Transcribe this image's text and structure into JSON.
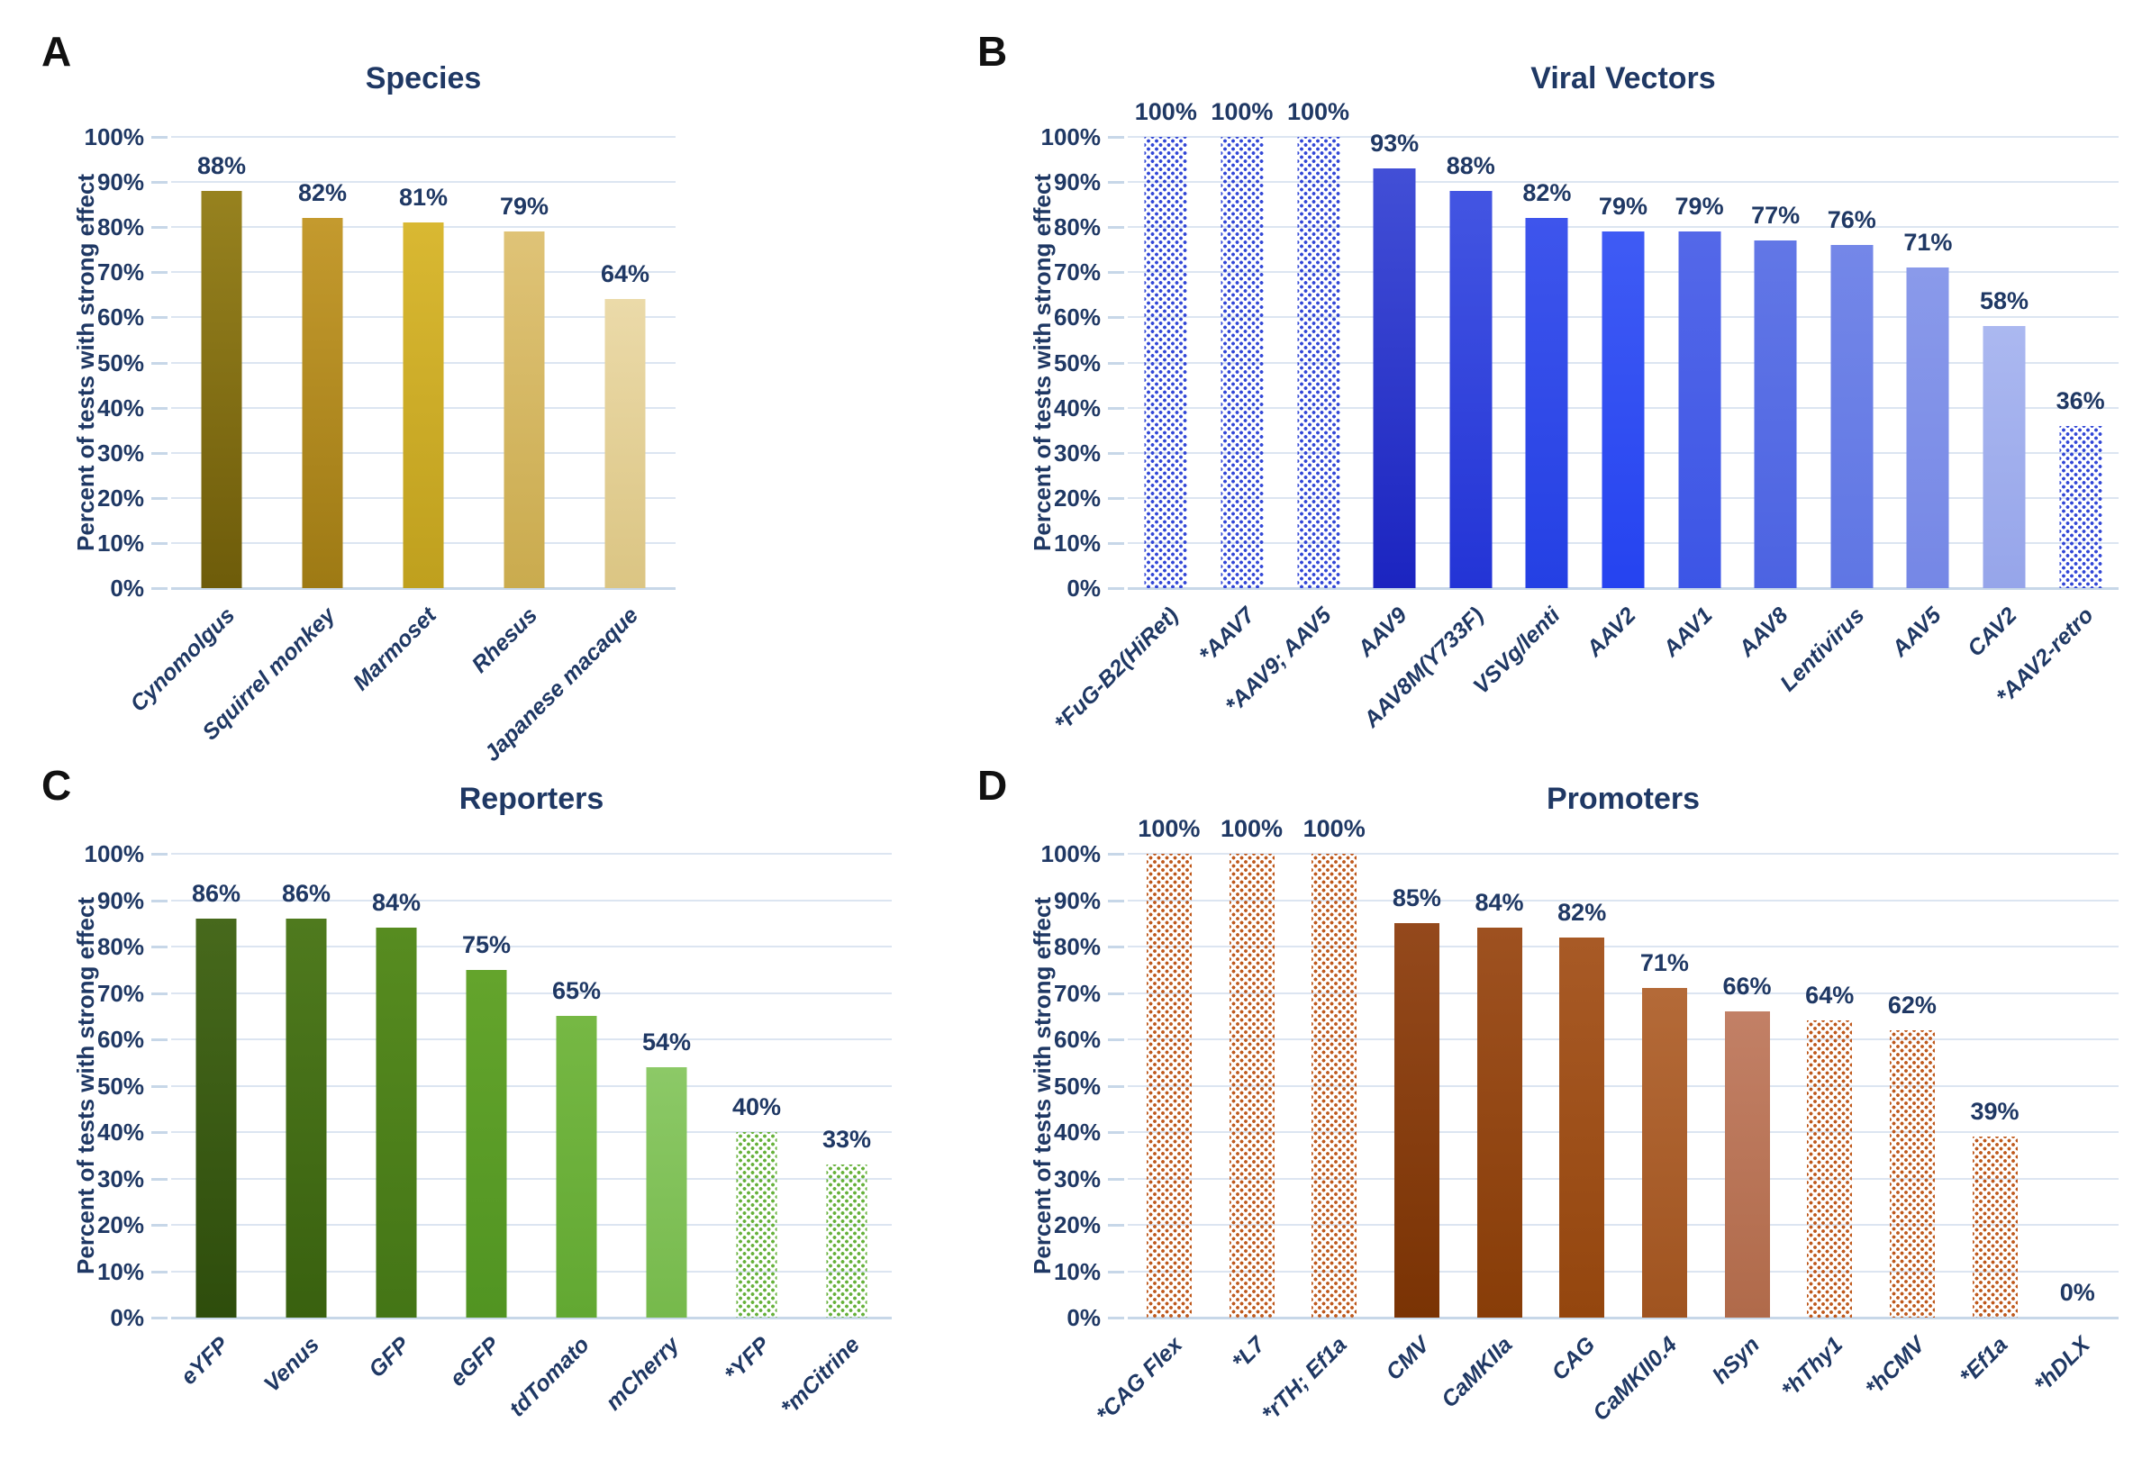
{
  "ylabel": "Percent of tests with strong effect",
  "yticks": [
    "0%",
    "10%",
    "20%",
    "30%",
    "40%",
    "50%",
    "60%",
    "70%",
    "80%",
    "90%",
    "100%"
  ],
  "style": {
    "text_color": "#1F3864",
    "letter_color": "#111111",
    "grid_color": "#DCE5F1",
    "baseline_color": "#C7D7E8",
    "background": "#FFFFFF"
  },
  "chart_data": [
    {
      "id": "A",
      "panel_letter": "A",
      "type": "bar",
      "title": "Species",
      "xlabel": "",
      "ylabel": "Percent of tests with strong effect",
      "ylim": [
        0,
        100
      ],
      "grid": true,
      "legend": false,
      "categories": [
        "Cynomolgus",
        "Squirrel monkey",
        "Marmoset",
        "Rhesus",
        "Japanese macaque"
      ],
      "values": [
        88,
        82,
        81,
        79,
        64
      ],
      "bars": [
        {
          "label": "Cynomolgus",
          "value": 88,
          "display": "88%",
          "pattern": "solid",
          "color_top": "#97821F",
          "color_bottom": "#6E5C0A"
        },
        {
          "label": "Squirrel monkey",
          "value": 82,
          "display": "82%",
          "pattern": "solid",
          "color_top": "#C49A2E",
          "color_bottom": "#9E7A14"
        },
        {
          "label": "Marmoset",
          "value": 81,
          "display": "81%",
          "pattern": "solid",
          "color_top": "#D9B832",
          "color_bottom": "#BFA01E"
        },
        {
          "label": "Rhesus",
          "value": 79,
          "display": "79%",
          "pattern": "solid",
          "color_top": "#DFC377",
          "color_bottom": "#CAAB4E"
        },
        {
          "label": "Japanese macaque",
          "value": 64,
          "display": "64%",
          "pattern": "solid",
          "color_top": "#EBDAA9",
          "color_bottom": "#DBC583"
        }
      ]
    },
    {
      "id": "B",
      "panel_letter": "B",
      "type": "bar",
      "title": "Viral Vectors",
      "xlabel": "",
      "ylabel": "Percent of tests with strong effect",
      "ylim": [
        0,
        100
      ],
      "grid": true,
      "legend": false,
      "categories": [
        "*FuG-B2(HiRet)",
        "*AAV7",
        "*AAV9; AAV5",
        "AAV9",
        "AAV8M(Y733F)",
        "VSVg/lenti",
        "AAV2",
        "AAV1",
        "AAV8",
        "Lentivirus",
        "AAV5",
        "CAV2",
        "*AAV2-retro"
      ],
      "values": [
        100,
        100,
        100,
        93,
        88,
        82,
        79,
        79,
        77,
        76,
        71,
        58,
        36
      ],
      "bars": [
        {
          "label": "*FuG-B2(HiRet)",
          "value": 100,
          "display": "100%",
          "pattern": "dotted",
          "dot_color": "#3247D6"
        },
        {
          "label": "*AAV7",
          "value": 100,
          "display": "100%",
          "pattern": "dotted",
          "dot_color": "#3247D6"
        },
        {
          "label": "*AAV9; AAV5",
          "value": 100,
          "display": "100%",
          "pattern": "dotted",
          "dot_color": "#3247D6"
        },
        {
          "label": "AAV9",
          "value": 93,
          "display": "93%",
          "pattern": "solid",
          "color_top": "#424FD6",
          "color_bottom": "#1B24C0"
        },
        {
          "label": "AAV8M(Y733F)",
          "value": 88,
          "display": "88%",
          "pattern": "solid",
          "color_top": "#4355E2",
          "color_bottom": "#2334D6"
        },
        {
          "label": "VSVg/lenti",
          "value": 82,
          "display": "82%",
          "pattern": "solid",
          "color_top": "#3E55EC",
          "color_bottom": "#2440E4"
        },
        {
          "label": "AAV2",
          "value": 79,
          "display": "79%",
          "pattern": "solid",
          "color_top": "#3F5BF4",
          "color_bottom": "#2543F0"
        },
        {
          "label": "AAV1",
          "value": 79,
          "display": "79%",
          "pattern": "solid",
          "color_top": "#5468E8",
          "color_bottom": "#3C55E6"
        },
        {
          "label": "AAV8",
          "value": 77,
          "display": "77%",
          "pattern": "solid",
          "color_top": "#6277E6",
          "color_bottom": "#4C63E2"
        },
        {
          "label": "Lentivirus",
          "value": 76,
          "display": "76%",
          "pattern": "solid",
          "color_top": "#7487E8",
          "color_bottom": "#5F76E4"
        },
        {
          "label": "AAV5",
          "value": 71,
          "display": "71%",
          "pattern": "solid",
          "color_top": "#8A9AEA",
          "color_bottom": "#7587E6"
        },
        {
          "label": "CAV2",
          "value": 58,
          "display": "58%",
          "pattern": "solid",
          "color_top": "#ABB8F0",
          "color_bottom": "#96A5EA"
        },
        {
          "label": "*AAV2-retro",
          "value": 36,
          "display": "36%",
          "pattern": "dotted",
          "dot_color": "#3247D6"
        }
      ]
    },
    {
      "id": "C",
      "panel_letter": "C",
      "type": "bar",
      "title": "Reporters",
      "xlabel": "",
      "ylabel": "Percent of tests with strong effect",
      "ylim": [
        0,
        100
      ],
      "grid": true,
      "legend": false,
      "categories": [
        "eYFP",
        "Venus",
        "GFP",
        "eGFP",
        "tdTomato",
        "mCherry",
        "*YFP",
        "*mCitrine"
      ],
      "values": [
        86,
        86,
        84,
        75,
        65,
        54,
        40,
        33
      ],
      "bars": [
        {
          "label": "eYFP",
          "value": 86,
          "display": "86%",
          "pattern": "solid",
          "color_top": "#47691C",
          "color_bottom": "#2E4D0C"
        },
        {
          "label": "Venus",
          "value": 86,
          "display": "86%",
          "pattern": "solid",
          "color_top": "#4F7A1E",
          "color_bottom": "#39610F"
        },
        {
          "label": "GFP",
          "value": 84,
          "display": "84%",
          "pattern": "solid",
          "color_top": "#578C20",
          "color_bottom": "#447516"
        },
        {
          "label": "eGFP",
          "value": 75,
          "display": "75%",
          "pattern": "solid",
          "color_top": "#64A42C",
          "color_bottom": "#519422"
        },
        {
          "label": "tdTomato",
          "value": 65,
          "display": "65%",
          "pattern": "solid",
          "color_top": "#76B844",
          "color_bottom": "#62A832"
        },
        {
          "label": "mCherry",
          "value": 54,
          "display": "54%",
          "pattern": "solid",
          "color_top": "#8CC967",
          "color_bottom": "#76B94B"
        },
        {
          "label": "*YFP",
          "value": 40,
          "display": "40%",
          "pattern": "dotted",
          "dot_color": "#66B13A"
        },
        {
          "label": "*mCitrine",
          "value": 33,
          "display": "33%",
          "pattern": "dotted",
          "dot_color": "#66B13A"
        }
      ]
    },
    {
      "id": "D",
      "panel_letter": "D",
      "type": "bar",
      "title": "Promoters",
      "xlabel": "",
      "ylabel": "Percent of tests with strong effect",
      "ylim": [
        0,
        100
      ],
      "grid": true,
      "legend": false,
      "categories": [
        "*CAG Flex",
        "*L7",
        "*rTH; Ef1a",
        "CMV",
        "CaMKIIa",
        "CAG",
        "CaMKII0.4",
        "hSyn",
        "*hThy1",
        "*hCMV",
        "*Ef1a",
        "*hDLX"
      ],
      "values": [
        100,
        100,
        100,
        85,
        84,
        82,
        71,
        66,
        64,
        62,
        39,
        0
      ],
      "bars": [
        {
          "label": "*CAG Flex",
          "value": 100,
          "display": "100%",
          "pattern": "dotted",
          "dot_color": "#BF5A1E"
        },
        {
          "label": "*L7",
          "value": 100,
          "display": "100%",
          "pattern": "dotted",
          "dot_color": "#BF5A1E"
        },
        {
          "label": "*rTH; Ef1a",
          "value": 100,
          "display": "100%",
          "pattern": "dotted",
          "dot_color": "#BF5A1E"
        },
        {
          "label": "CMV",
          "value": 85,
          "display": "85%",
          "pattern": "solid",
          "color_top": "#94491C",
          "color_bottom": "#7A3304"
        },
        {
          "label": "CaMKIIa",
          "value": 84,
          "display": "84%",
          "pattern": "solid",
          "color_top": "#9E5120",
          "color_bottom": "#883D08"
        },
        {
          "label": "CAG",
          "value": 82,
          "display": "82%",
          "pattern": "solid",
          "color_top": "#A85A26",
          "color_bottom": "#94460E"
        },
        {
          "label": "CaMKII0.4",
          "value": 71,
          "display": "71%",
          "pattern": "solid",
          "color_top": "#B46A38",
          "color_bottom": "#A05420"
        },
        {
          "label": "hSyn",
          "value": 66,
          "display": "66%",
          "pattern": "solid",
          "color_top": "#C28066",
          "color_bottom": "#B06A4A"
        },
        {
          "label": "*hThy1",
          "value": 64,
          "display": "64%",
          "pattern": "dotted",
          "dot_color": "#BF5A1E"
        },
        {
          "label": "*hCMV",
          "value": 62,
          "display": "62%",
          "pattern": "dotted",
          "dot_color": "#BF5A1E"
        },
        {
          "label": "*Ef1a",
          "value": 39,
          "display": "39%",
          "pattern": "dotted",
          "dot_color": "#BF5A1E"
        },
        {
          "label": "*hDLX",
          "value": 0,
          "display": "0%",
          "pattern": "dotted",
          "dot_color": "#BF5A1E"
        }
      ]
    }
  ]
}
